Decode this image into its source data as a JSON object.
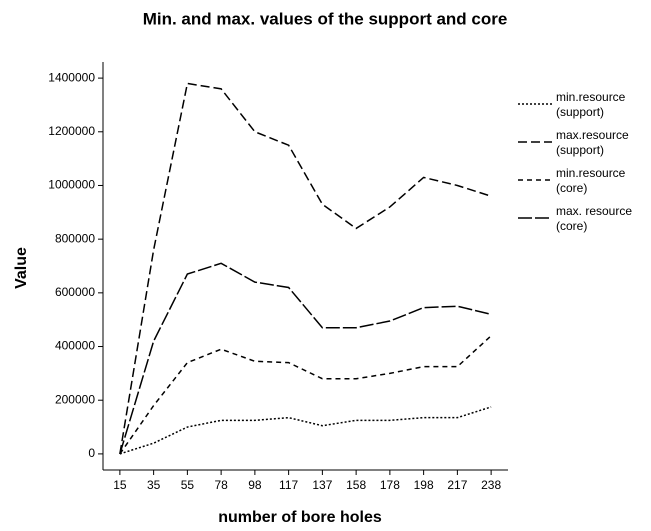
{
  "chart_data": {
    "type": "line",
    "title": "Min. and max. values of the support and core",
    "x_label": "number of bore holes",
    "y_label": "Value",
    "categories": [
      15,
      35,
      55,
      78,
      98,
      117,
      137,
      158,
      178,
      198,
      217,
      238
    ],
    "series": [
      {
        "name": "min.resource (support)",
        "color": "#000000",
        "dash": "2,2",
        "values": [
          0,
          40000,
          100000,
          125000,
          125000,
          135000,
          105000,
          125000,
          125000,
          135000,
          135000,
          175000
        ]
      },
      {
        "name": "max.resource (support)",
        "color": "#000000",
        "dash": "9,4",
        "values": [
          0,
          760000,
          1380000,
          1360000,
          1200000,
          1150000,
          930000,
          840000,
          920000,
          1030000,
          1000000,
          960000
        ]
      },
      {
        "name": "min.resource (core)",
        "color": "#000000",
        "dash": "5,4",
        "values": [
          0,
          180000,
          340000,
          390000,
          345000,
          340000,
          280000,
          280000,
          300000,
          325000,
          325000,
          440000
        ]
      },
      {
        "name": "max. resource (core)",
        "color": "#000000",
        "dash": "14,3",
        "values": [
          0,
          420000,
          670000,
          710000,
          640000,
          620000,
          470000,
          470000,
          495000,
          545000,
          550000,
          520000
        ]
      }
    ],
    "ylim": [
      -60000,
      1460000
    ],
    "yticks": [
      0,
      200000,
      400000,
      600000,
      800000,
      1000000,
      1200000,
      1400000
    ]
  }
}
